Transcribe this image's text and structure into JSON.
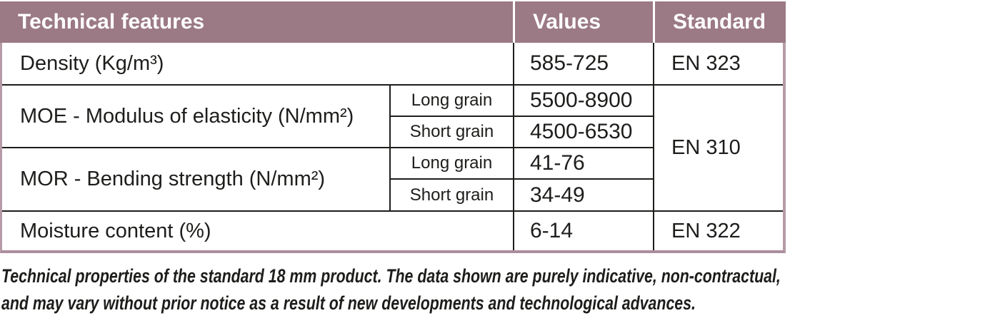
{
  "palette": {
    "header_bg": "#9b7985",
    "header_text": "#ffffff",
    "outer_border": "#b59ba8",
    "inner_border": "#1d1d1b",
    "body_text": "#1d1d1b",
    "page_bg": "#ffffff"
  },
  "table": {
    "headers": {
      "feature": "Technical features",
      "values": "Values",
      "standard": "Standard"
    },
    "rows": [
      {
        "feature": "Density (Kg/m³)",
        "grain": "",
        "value": "585-725",
        "standard": "EN 323"
      },
      {
        "feature": "MOE - Modulus of elasticity (N/mm²)",
        "grain": "Long grain",
        "value": "5500-8900",
        "standard": "EN 310"
      },
      {
        "feature": "",
        "grain": "Short grain",
        "value": "4500-6530",
        "standard": ""
      },
      {
        "feature": "MOR - Bending strength (N/mm²)",
        "grain": "Long grain",
        "value": "41-76",
        "standard": ""
      },
      {
        "feature": "",
        "grain": "Short grain",
        "value": "34-49",
        "standard": ""
      },
      {
        "feature": "Moisture content (%)",
        "grain": "",
        "value": "6-14",
        "standard": "EN 322"
      }
    ]
  },
  "caption": {
    "lines": [
      "Technical properties of the standard 18 mm product. The data shown are purely indicative, non-contractual,",
      "and may vary without prior notice as a result of new developments and technological advances."
    ]
  }
}
